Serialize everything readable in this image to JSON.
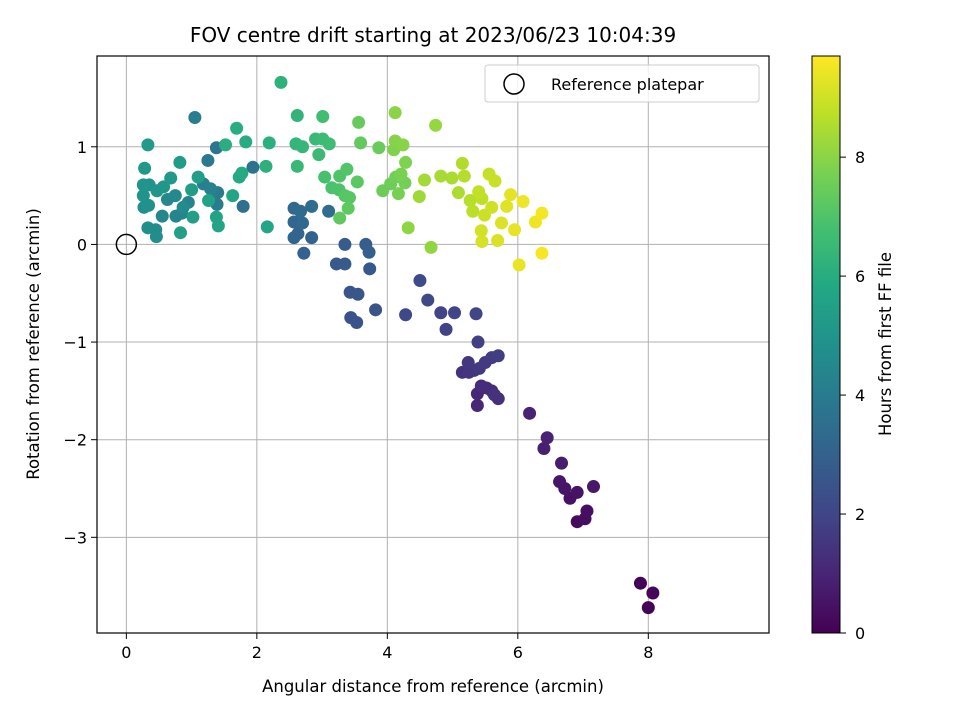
{
  "chart_data": {
    "type": "scatter",
    "title": "FOV centre drift starting at 2023/06/23 10:04:39",
    "xlabel": "Angular distance from reference (arcmin)",
    "ylabel": "Rotation from reference (arcmin)",
    "xlim": [
      -0.45,
      9.85
    ],
    "ylim": [
      -3.98,
      1.93
    ],
    "xticks": [
      0,
      2,
      4,
      6,
      8
    ],
    "yticks": [
      1,
      0,
      -1,
      -2,
      -3
    ],
    "xtick_labels": [
      "0",
      "2",
      "4",
      "6",
      "8"
    ],
    "ytick_labels": [
      "1",
      "0",
      "−1",
      "−2",
      "−3"
    ],
    "grid": true,
    "legend": {
      "label": "Reference platepar",
      "placement": "top-right"
    },
    "reference_point": [
      0,
      0
    ],
    "colorbar": {
      "label": "Hours from first FF file",
      "range": [
        0,
        9.7
      ],
      "ticks": [
        0,
        2,
        4,
        6,
        8
      ],
      "tick_labels": [
        "0",
        "2",
        "4",
        "6",
        "8"
      ],
      "colormap": "viridis"
    },
    "series": [
      {
        "points": [
          [
            7.88,
            -3.47,
            0.05
          ],
          [
            8.0,
            -3.72,
            0.1
          ],
          [
            8.07,
            -3.57,
            0.15
          ],
          [
            6.91,
            -2.84,
            0.3
          ],
          [
            7.03,
            -2.81,
            0.35
          ],
          [
            7.06,
            -2.73,
            0.4
          ],
          [
            6.8,
            -2.6,
            0.45
          ],
          [
            6.91,
            -2.54,
            0.5
          ],
          [
            6.72,
            -2.5,
            0.55
          ],
          [
            6.64,
            -2.43,
            0.6
          ],
          [
            7.16,
            -2.48,
            0.65
          ],
          [
            6.67,
            -2.24,
            0.8
          ],
          [
            6.4,
            -2.09,
            0.85
          ],
          [
            6.45,
            -1.98,
            0.9
          ],
          [
            6.18,
            -1.73,
            0.95
          ],
          [
            5.38,
            -1.65,
            1.05
          ],
          [
            5.38,
            -1.53,
            1.1
          ],
          [
            5.52,
            -1.47,
            1.15
          ],
          [
            5.44,
            -1.45,
            1.2
          ],
          [
            5.6,
            -1.5,
            1.25
          ],
          [
            5.7,
            -1.58,
            1.3
          ],
          [
            5.64,
            -1.54,
            1.35
          ],
          [
            5.15,
            -1.31,
            1.4
          ],
          [
            5.25,
            -1.31,
            1.45
          ],
          [
            5.33,
            -1.29,
            1.5
          ],
          [
            5.24,
            -1.21,
            1.55
          ],
          [
            5.41,
            -1.27,
            1.6
          ],
          [
            5.5,
            -1.21,
            1.65
          ],
          [
            5.6,
            -1.16,
            1.7
          ],
          [
            5.7,
            -1.14,
            1.75
          ],
          [
            5.39,
            -1.0,
            1.8
          ],
          [
            4.9,
            -0.87,
            1.9
          ],
          [
            4.82,
            -0.7,
            1.95
          ],
          [
            5.03,
            -0.7,
            2.0
          ],
          [
            5.36,
            -0.71,
            2.05
          ],
          [
            4.28,
            -0.72,
            2.1
          ],
          [
            4.62,
            -0.57,
            2.15
          ],
          [
            4.5,
            -0.37,
            2.2
          ],
          [
            3.44,
            -0.75,
            2.4
          ],
          [
            3.53,
            -0.8,
            2.45
          ],
          [
            3.82,
            -0.67,
            2.5
          ],
          [
            3.43,
            -0.49,
            2.55
          ],
          [
            3.55,
            -0.51,
            2.6
          ],
          [
            3.73,
            -0.25,
            2.65
          ],
          [
            3.22,
            -0.2,
            2.7
          ],
          [
            3.35,
            -0.2,
            2.75
          ],
          [
            3.35,
            0.0,
            2.8
          ],
          [
            3.67,
            0.0,
            2.85
          ],
          [
            3.72,
            -0.08,
            2.9
          ],
          [
            2.72,
            -0.09,
            3.0
          ],
          [
            2.84,
            0.07,
            3.05
          ],
          [
            2.63,
            0.11,
            3.1
          ],
          [
            2.57,
            0.07,
            3.15
          ],
          [
            2.57,
            0.23,
            3.2
          ],
          [
            2.7,
            0.22,
            3.25
          ],
          [
            2.57,
            0.37,
            3.3
          ],
          [
            2.67,
            0.34,
            3.35
          ],
          [
            2.84,
            0.39,
            3.4
          ],
          [
            3.1,
            0.34,
            3.45
          ],
          [
            1.79,
            0.39,
            3.6
          ],
          [
            1.94,
            0.79,
            3.7
          ],
          [
            1.38,
            0.99,
            3.8
          ],
          [
            1.25,
            0.86,
            3.9
          ],
          [
            1.4,
            0.53,
            4.0
          ],
          [
            1.39,
            0.41,
            4.05
          ],
          [
            1.05,
            1.3,
            4.1
          ],
          [
            1.18,
            0.62,
            4.2
          ],
          [
            1.29,
            0.57,
            4.25
          ],
          [
            0.95,
            0.43,
            4.3
          ],
          [
            0.85,
            0.32,
            4.35
          ],
          [
            0.76,
            0.29,
            4.4
          ],
          [
            0.55,
            0.29,
            4.45
          ],
          [
            0.63,
            0.46,
            4.5
          ],
          [
            0.75,
            0.5,
            4.55
          ],
          [
            0.87,
            0.38,
            4.6
          ],
          [
            0.45,
            0.15,
            4.65
          ],
          [
            0.46,
            0.08,
            4.7
          ],
          [
            0.33,
            0.17,
            4.75
          ],
          [
            0.27,
            0.38,
            4.8
          ],
          [
            0.34,
            0.4,
            4.85
          ],
          [
            0.26,
            0.5,
            4.9
          ],
          [
            0.35,
            0.61,
            4.95
          ],
          [
            0.26,
            0.61,
            5.0
          ],
          [
            0.47,
            0.55,
            5.05
          ],
          [
            0.57,
            0.59,
            5.1
          ],
          [
            0.68,
            0.68,
            5.15
          ],
          [
            0.28,
            0.78,
            5.2
          ],
          [
            0.33,
            1.02,
            5.25
          ],
          [
            0.82,
            0.84,
            5.3
          ],
          [
            1.1,
            0.69,
            5.35
          ],
          [
            1.0,
            0.56,
            5.4
          ],
          [
            1.02,
            0.28,
            5.45
          ],
          [
            0.83,
            0.12,
            5.5
          ],
          [
            1.26,
            0.45,
            5.55
          ],
          [
            1.38,
            0.28,
            5.6
          ],
          [
            1.41,
            0.19,
            5.65
          ],
          [
            1.63,
            0.5,
            5.7
          ],
          [
            2.16,
            0.18,
            5.75
          ],
          [
            1.73,
            0.69,
            5.85
          ],
          [
            1.77,
            0.73,
            5.9
          ],
          [
            1.83,
            1.05,
            5.95
          ],
          [
            1.69,
            1.19,
            6.0
          ],
          [
            1.52,
            1.02,
            6.05
          ],
          [
            2.19,
            1.04,
            6.1
          ],
          [
            2.14,
            0.8,
            6.15
          ],
          [
            2.37,
            1.66,
            6.2
          ],
          [
            2.62,
            1.32,
            6.3
          ],
          [
            2.6,
            1.03,
            6.35
          ],
          [
            2.7,
            1.0,
            6.4
          ],
          [
            2.62,
            0.8,
            6.45
          ],
          [
            2.9,
            1.08,
            6.5
          ],
          [
            2.95,
            0.92,
            6.55
          ],
          [
            3.01,
            1.08,
            6.6
          ],
          [
            3.11,
            1.03,
            6.65
          ],
          [
            3.01,
            1.31,
            6.7
          ],
          [
            3.04,
            0.69,
            6.85
          ],
          [
            3.15,
            0.58,
            6.9
          ],
          [
            3.26,
            0.56,
            6.95
          ],
          [
            3.27,
            0.7,
            7.0
          ],
          [
            3.38,
            0.77,
            7.05
          ],
          [
            3.35,
            0.5,
            7.1
          ],
          [
            3.42,
            0.48,
            7.15
          ],
          [
            3.54,
            0.64,
            7.2
          ],
          [
            3.4,
            0.37,
            7.25
          ],
          [
            3.27,
            0.27,
            7.3
          ],
          [
            3.59,
            1.04,
            7.35
          ],
          [
            3.56,
            1.25,
            7.4
          ],
          [
            3.87,
            0.99,
            7.45
          ],
          [
            3.93,
            0.55,
            7.5
          ],
          [
            4.05,
            0.62,
            7.55
          ],
          [
            4.13,
            0.69,
            7.6
          ],
          [
            4.27,
            0.63,
            7.65
          ],
          [
            4.17,
            0.52,
            7.7
          ],
          [
            4.21,
            0.72,
            7.75
          ],
          [
            4.28,
            0.84,
            7.8
          ],
          [
            4.1,
            0.97,
            7.85
          ],
          [
            4.12,
            1.06,
            7.9
          ],
          [
            4.24,
            1.02,
            7.95
          ],
          [
            4.12,
            1.35,
            8.0
          ],
          [
            4.32,
            0.17,
            8.05
          ],
          [
            4.67,
            -0.03,
            8.1
          ],
          [
            4.74,
            1.22,
            8.15
          ],
          [
            4.49,
            0.49,
            8.3
          ],
          [
            4.57,
            0.66,
            8.35
          ],
          [
            4.82,
            0.7,
            8.4
          ],
          [
            4.99,
            0.68,
            8.45
          ],
          [
            5.09,
            0.53,
            8.5
          ],
          [
            5.15,
            0.83,
            8.55
          ],
          [
            5.18,
            0.7,
            8.6
          ],
          [
            5.27,
            0.45,
            8.65
          ],
          [
            5.31,
            0.34,
            8.7
          ],
          [
            5.45,
            0.47,
            8.75
          ],
          [
            5.4,
            0.54,
            8.8
          ],
          [
            5.56,
            0.72,
            8.85
          ],
          [
            5.65,
            0.65,
            8.9
          ],
          [
            5.49,
            0.3,
            8.95
          ],
          [
            5.6,
            0.38,
            9.0
          ],
          [
            5.44,
            0.14,
            9.05
          ],
          [
            5.45,
            0.03,
            9.1
          ],
          [
            5.69,
            0.04,
            9.15
          ],
          [
            5.75,
            0.22,
            9.2
          ],
          [
            5.83,
            0.39,
            9.25
          ],
          [
            5.89,
            0.51,
            9.3
          ],
          [
            5.95,
            0.15,
            9.35
          ],
          [
            6.02,
            -0.21,
            9.4
          ],
          [
            6.08,
            0.44,
            9.45
          ],
          [
            6.27,
            0.23,
            9.5
          ],
          [
            6.37,
            0.32,
            9.55
          ],
          [
            6.37,
            -0.09,
            9.6
          ]
        ]
      }
    ]
  }
}
